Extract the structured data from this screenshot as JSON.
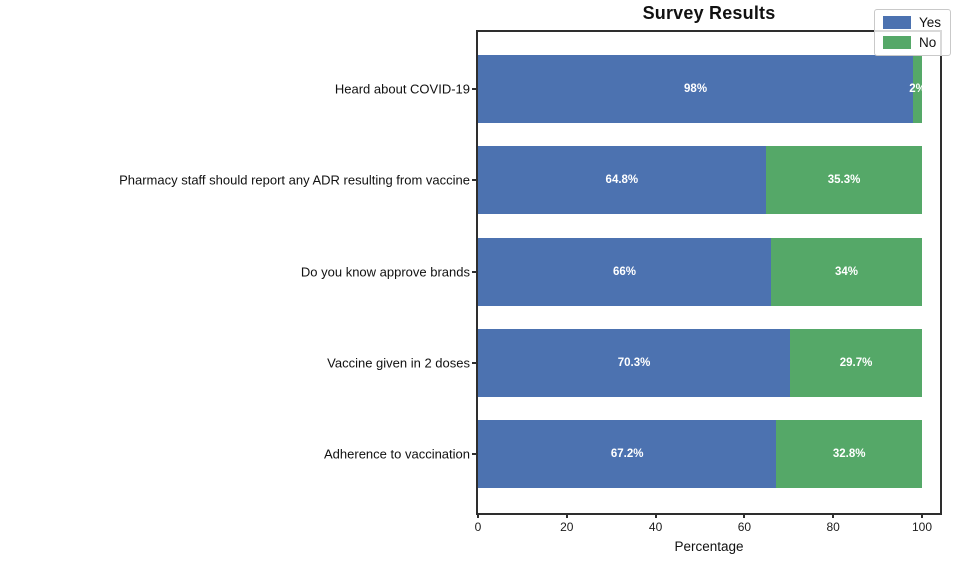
{
  "chart": {
    "title": "Survey Results",
    "xlabel": "Percentage"
  },
  "legend": {
    "items": [
      {
        "label": "Yes",
        "color": "#4C72B0"
      },
      {
        "label": "No",
        "color": "#55A868"
      }
    ]
  },
  "chart_data": {
    "type": "bar",
    "orientation": "horizontal",
    "stacked": true,
    "title": "Survey Results",
    "xlabel": "Percentage",
    "ylabel": "",
    "categories": [
      "Heard about COVID-19",
      "Pharmacy staff should report any ADR resulting from vaccine",
      "Do you know approve brands",
      "Vaccine given in 2 doses",
      "Adherence to vaccination"
    ],
    "series": [
      {
        "name": "Yes",
        "color": "#4C72B0",
        "values": [
          98,
          64.8,
          66,
          70.3,
          67.2
        ],
        "labels": [
          "98%",
          "64.8%",
          "66%",
          "70.3%",
          "67.2%"
        ]
      },
      {
        "name": "No",
        "color": "#55A868",
        "values": [
          2,
          35.3,
          34,
          29.7,
          32.8
        ],
        "labels": [
          "2%",
          "35.3%",
          "34%",
          "29.7%",
          "32.8%"
        ]
      }
    ],
    "xlim": [
      0,
      104
    ],
    "xticks": [
      0,
      20,
      40,
      60,
      80,
      100
    ],
    "grid": false,
    "legend_position": "upper right",
    "bar_label_color": "#ffffff"
  }
}
